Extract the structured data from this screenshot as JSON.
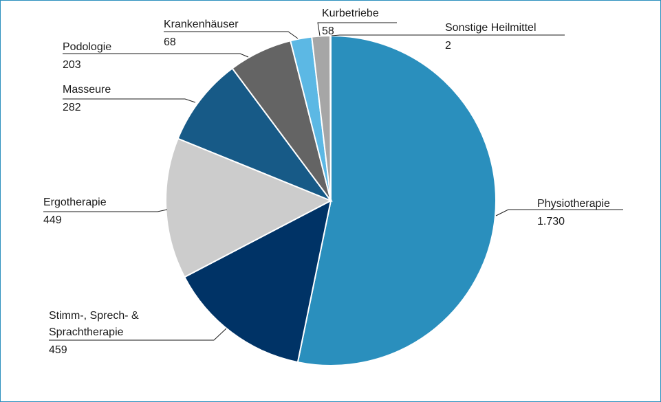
{
  "chart_data": {
    "type": "pie",
    "title": "",
    "slices": [
      {
        "label": "Physiotherapie",
        "value": 1730,
        "value_text": "1.730",
        "color": "#2a8fbd"
      },
      {
        "label": "Stimm-, Sprech- & Sprachtherapie",
        "label_lines": [
          "Stimm-, Sprech- &",
          "Sprachtherapie"
        ],
        "value": 459,
        "value_text": "459",
        "color": "#003366"
      },
      {
        "label": "Ergotherapie",
        "value": 449,
        "value_text": "449",
        "color": "#cccccc"
      },
      {
        "label": "Masseure",
        "value": 282,
        "value_text": "282",
        "color": "#175a87"
      },
      {
        "label": "Podologie",
        "value": 203,
        "value_text": "203",
        "color": "#646464"
      },
      {
        "label": "Krankenhäuser",
        "value": 68,
        "value_text": "68",
        "color": "#5cb8e4"
      },
      {
        "label": "Kurbetriebe",
        "value": 58,
        "value_text": "58",
        "color": "#a6a6a6"
      },
      {
        "label": "Sonstige Heilmittel",
        "value": 2,
        "value_text": "2",
        "color": "#1a1a1a"
      }
    ]
  }
}
